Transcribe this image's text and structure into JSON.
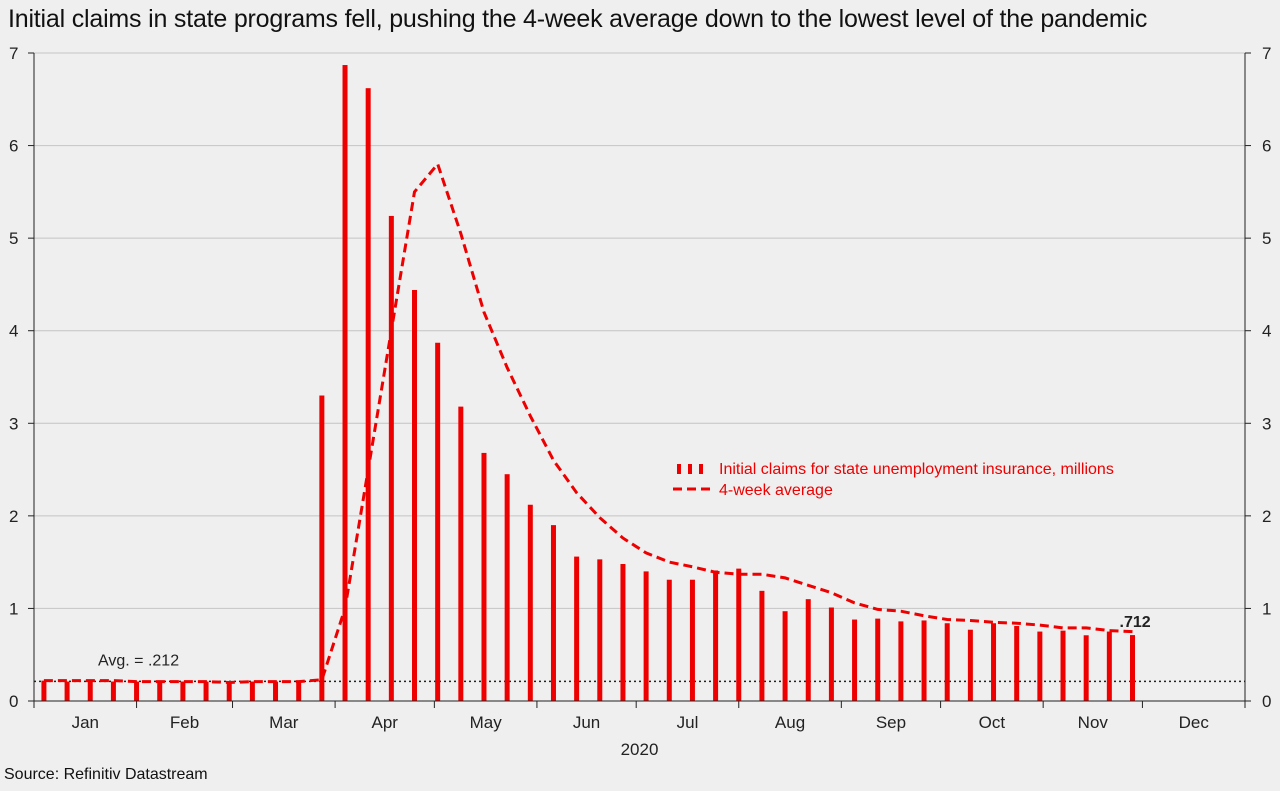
{
  "title": "Initial claims in state programs fell, pushing the 4-week average down to the lowest level of the pandemic",
  "source": "Source: Refinitiv Datastream",
  "chart_data": {
    "type": "bar",
    "colors": {
      "bars": "#ee0000",
      "average": "#ee0000",
      "reference": "#222222",
      "grid": "#c4c4c4"
    },
    "ylim": [
      0,
      7
    ],
    "yticks": [
      0,
      1,
      2,
      3,
      4,
      5,
      6,
      7
    ],
    "grid": true,
    "x_months": [
      "Jan",
      "Feb",
      "Mar",
      "Apr",
      "May",
      "Jun",
      "Jul",
      "Aug",
      "Sep",
      "Oct",
      "Nov",
      "Dec"
    ],
    "x_year": "2020",
    "dates": [
      "2020-01-04",
      "2020-01-11",
      "2020-01-18",
      "2020-01-25",
      "2020-02-01",
      "2020-02-08",
      "2020-02-15",
      "2020-02-22",
      "2020-02-29",
      "2020-03-07",
      "2020-03-14",
      "2020-03-21",
      "2020-03-28",
      "2020-04-04",
      "2020-04-11",
      "2020-04-18",
      "2020-04-25",
      "2020-05-02",
      "2020-05-09",
      "2020-05-16",
      "2020-05-23",
      "2020-05-30",
      "2020-06-06",
      "2020-06-13",
      "2020-06-20",
      "2020-06-27",
      "2020-07-04",
      "2020-07-11",
      "2020-07-18",
      "2020-07-25",
      "2020-08-01",
      "2020-08-08",
      "2020-08-15",
      "2020-08-22",
      "2020-08-29",
      "2020-09-05",
      "2020-09-12",
      "2020-09-19",
      "2020-09-26",
      "2020-10-03",
      "2020-10-10",
      "2020-10-17",
      "2020-10-24",
      "2020-10-31",
      "2020-11-07",
      "2020-11-14",
      "2020-11-21",
      "2020-11-28"
    ],
    "series": [
      {
        "name": "Initial claims for state unemployment insurance,  millions",
        "type": "bar",
        "values": [
          0.22,
          0.21,
          0.21,
          0.21,
          0.21,
          0.2,
          0.21,
          0.21,
          0.2,
          0.21,
          0.21,
          0.22,
          3.3,
          6.87,
          6.62,
          5.24,
          4.44,
          3.87,
          3.18,
          2.68,
          2.45,
          2.12,
          1.9,
          1.56,
          1.53,
          1.48,
          1.4,
          1.31,
          1.31,
          1.41,
          1.43,
          1.19,
          0.97,
          1.1,
          1.01,
          0.88,
          0.89,
          0.86,
          0.87,
          0.84,
          0.77,
          0.84,
          0.81,
          0.75,
          0.76,
          0.71,
          0.75,
          0.712
        ]
      },
      {
        "name": "4-week average",
        "type": "line",
        "values": [
          0.22,
          0.22,
          0.22,
          0.22,
          0.21,
          0.21,
          0.21,
          0.21,
          0.2,
          0.21,
          0.21,
          0.21,
          0.23,
          1.0,
          2.5,
          4.0,
          5.5,
          5.8,
          5.05,
          4.2,
          3.6,
          3.08,
          2.6,
          2.25,
          1.98,
          1.76,
          1.6,
          1.5,
          1.45,
          1.39,
          1.37,
          1.37,
          1.33,
          1.25,
          1.17,
          1.06,
          0.99,
          0.97,
          0.92,
          0.88,
          0.87,
          0.85,
          0.84,
          0.82,
          0.79,
          0.79,
          0.76,
          0.75
        ]
      }
    ],
    "reference_line": {
      "value": 0.212,
      "label": "Avg. = .212"
    },
    "end_label": ".712",
    "legend_position": "center-right"
  }
}
